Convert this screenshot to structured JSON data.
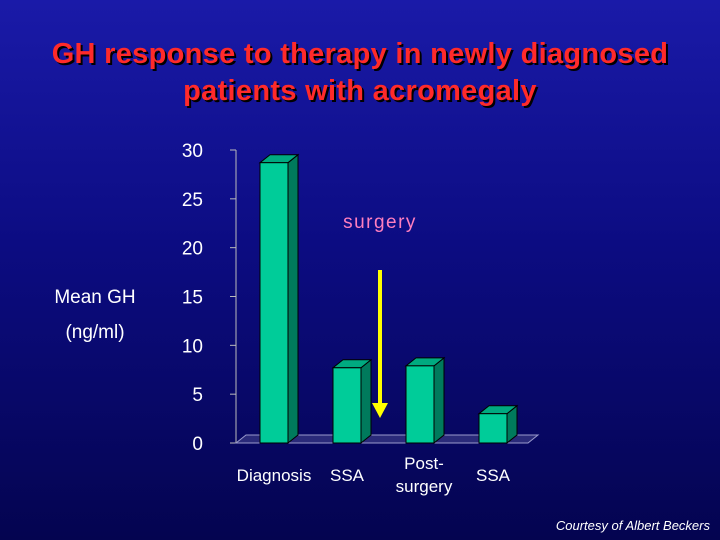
{
  "slide": {
    "title_line1": "GH response to therapy in newly diagnosed",
    "title_line2": "patients with acromegaly",
    "credit": "Courtesy of Albert Beckers"
  },
  "colors": {
    "title": "#ff2a2a",
    "bar_front": "#00cc99",
    "bar_top": "#00aa80",
    "bar_side": "#007a5c",
    "arrow": "#ffff00",
    "annotation": "#ff7fbf",
    "text": "#ffffff"
  },
  "chart_data": {
    "type": "bar",
    "categories": [
      "Diagnosis",
      "SSA",
      "Post-surgery",
      "SSA"
    ],
    "category_lines": [
      [
        "Diagnosis"
      ],
      [
        "SSA"
      ],
      [
        "Post-",
        "surgery"
      ],
      [
        "SSA"
      ]
    ],
    "values": [
      28.7,
      7.7,
      7.9,
      3.0
    ],
    "ylabel_lines": [
      "Mean GH",
      "(ng/ml)"
    ],
    "yticks": [
      0,
      5,
      10,
      15,
      20,
      25,
      30
    ],
    "ylim": [
      0,
      30
    ],
    "grid": false,
    "annotation": {
      "text": "surgery",
      "between_categories": [
        1,
        2
      ]
    }
  }
}
